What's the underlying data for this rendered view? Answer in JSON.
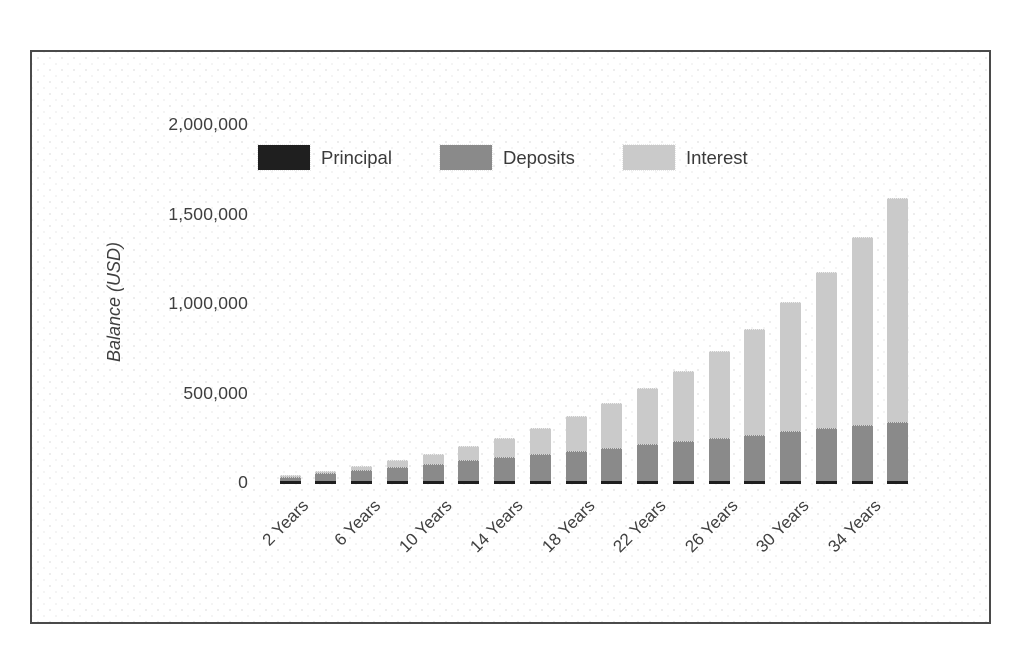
{
  "accent_colors": {
    "frame_border": "#4a4a4a",
    "text": "#3f3f3f",
    "background_dots": "#e7e7e7"
  },
  "chart_data": {
    "type": "bar",
    "stacked": true,
    "title": "",
    "xlabel": "",
    "ylabel": "Balance (USD)",
    "ylim": [
      0,
      2000000
    ],
    "grid": false,
    "legend_position": "top-left",
    "y_ticks": [
      0,
      500000,
      1000000,
      1500000,
      2000000
    ],
    "y_tick_labels": [
      "0",
      "500,000",
      "1,000,000",
      "1,500,000",
      "2,000,000"
    ],
    "categories_years": [
      2,
      4,
      6,
      8,
      10,
      12,
      14,
      16,
      18,
      20,
      22,
      24,
      26,
      28,
      30,
      32,
      34,
      36
    ],
    "x_tick_labels": [
      "2 Years",
      "6 Years",
      "10 Years",
      "14 Years",
      "18 Years",
      "22 Years",
      "26 Years",
      "30 Years",
      "34 Years"
    ],
    "series": [
      {
        "name": "Principal",
        "color": "#1f1f1f",
        "values": [
          10000,
          10000,
          10000,
          10000,
          10000,
          10000,
          10000,
          10000,
          10000,
          10000,
          10000,
          10000,
          10000,
          10000,
          10000,
          10000,
          10000,
          10000
        ]
      },
      {
        "name": "Deposits",
        "color": "#8a8a8a",
        "values": [
          18000,
          36000,
          54000,
          72000,
          90000,
          108000,
          126000,
          144000,
          162000,
          180000,
          198000,
          216000,
          234000,
          252000,
          270000,
          288000,
          306000,
          324000
        ]
      },
      {
        "name": "Interest",
        "color": "#cacaca",
        "values": [
          2800,
          8600,
          18100,
          31600,
          49900,
          73600,
          103600,
          140700,
          186200,
          241100,
          306900,
          385300,
          478200,
          587600,
          716200,
          866600,
          1042400,
          1247100
        ]
      }
    ]
  }
}
